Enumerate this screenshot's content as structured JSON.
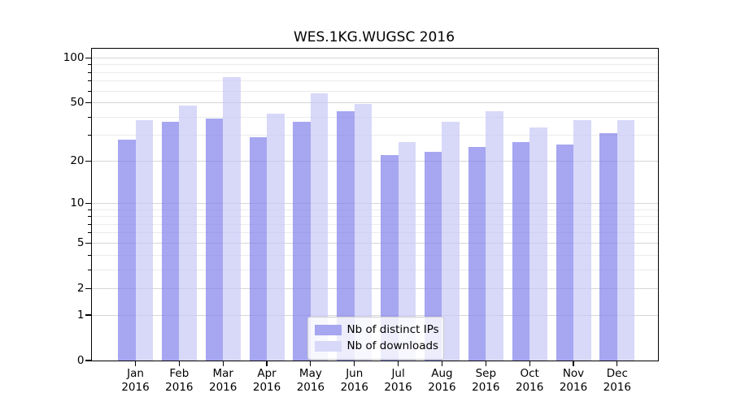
{
  "chart_data": {
    "type": "bar",
    "title": "WES.1KG.WUGSC 2016",
    "categories": [
      "Jan 2016",
      "Feb 2016",
      "Mar 2016",
      "Apr 2016",
      "May 2016",
      "Jun 2016",
      "Jul 2016",
      "Aug 2016",
      "Sep 2016",
      "Oct 2016",
      "Nov 2016",
      "Dec 2016"
    ],
    "series": [
      {
        "name": "Nb of distinct IPs",
        "values": [
          28,
          37,
          39,
          29,
          37,
          44,
          22,
          23,
          25,
          27,
          26,
          31
        ]
      },
      {
        "name": "Nb of downloads",
        "values": [
          38,
          48,
          74,
          42,
          58,
          49,
          27,
          37,
          44,
          34,
          38,
          38
        ]
      }
    ],
    "yscale": "log1p",
    "ylim": [
      0,
      116
    ],
    "yticks": [
      0,
      1,
      2,
      5,
      10,
      20,
      50,
      100
    ],
    "yticks_minor": [
      3,
      4,
      6,
      7,
      8,
      9,
      30,
      40,
      60,
      70,
      80,
      90
    ],
    "grid": true,
    "legend_position": "lower center",
    "xlabel": "",
    "ylabel": ""
  },
  "colors": {
    "bar_distinct_ips": "rgba(128,128,235,0.7)",
    "bar_downloads": "rgba(200,200,246,0.7)",
    "legend_swatch_distinct_ips": "#a6a6f1",
    "legend_swatch_downloads": "#d8d8f8",
    "grid_major": "#d6d6d6",
    "grid_minor": "#ebebeb",
    "spine": "#000000",
    "background": "#ffffff",
    "text": "#000000",
    "legend_border": "#cccccc"
  }
}
